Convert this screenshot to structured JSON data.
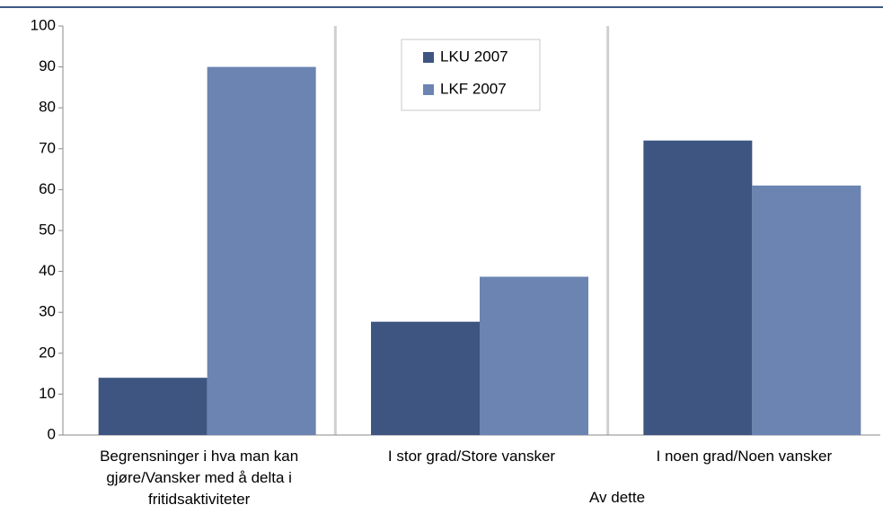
{
  "chart_data": {
    "type": "bar",
    "categories": [
      "Begrensninger i hva man kan gjøre/Vansker med å delta i fritidsaktiviteter",
      "I stor grad/Store vansker",
      "I noen grad/Noen vansker"
    ],
    "series": [
      {
        "name": "LKU 2007",
        "color": "#3d5580",
        "values": [
          14,
          27.7,
          72
        ]
      },
      {
        "name": "LKF 2007",
        "color": "#6b84b2",
        "values": [
          90,
          38.7,
          61
        ]
      }
    ],
    "ylim": [
      0,
      100
    ],
    "yticks": [
      0,
      10,
      20,
      30,
      40,
      50,
      60,
      70,
      80,
      90,
      100
    ],
    "annotation": "Av dette",
    "legend": "top-center"
  }
}
